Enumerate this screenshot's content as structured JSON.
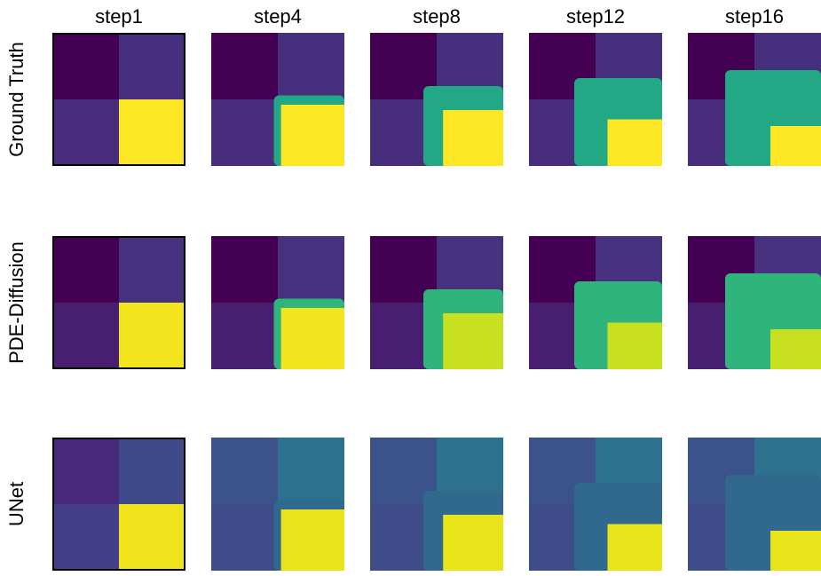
{
  "columns": [
    "step1",
    "step4",
    "step8",
    "step12",
    "step16"
  ],
  "rows": [
    "Ground Truth",
    "PDE-Diffusion",
    "UNet"
  ]
}
